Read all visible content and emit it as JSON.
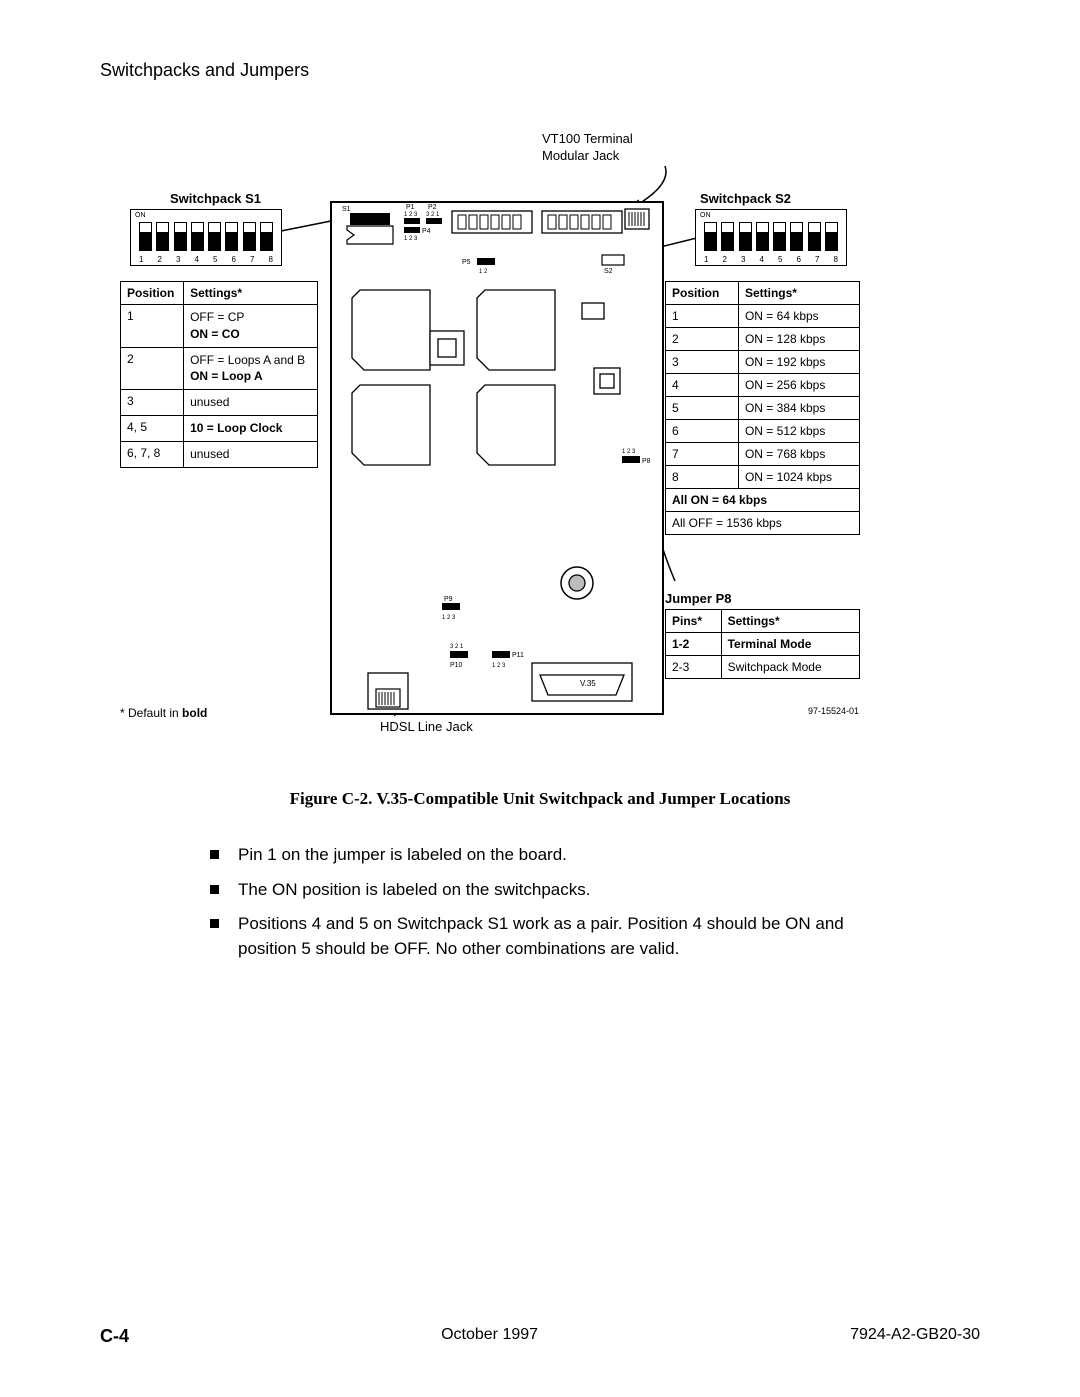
{
  "header": "Switchpacks and Jumpers",
  "labels": {
    "vt100": "VT100 Terminal\nModular Jack",
    "s1_title": "Switchpack S1",
    "s2_title": "Switchpack S2",
    "p8_title": "Jumper P8",
    "hdsl": "HDSL Line Jack",
    "default_note_prefix": "* Default in ",
    "default_note_bold": "bold",
    "on": "ON",
    "v35": "V.35",
    "P1": "P1",
    "P2": "P2",
    "P4": "P4",
    "P5": "P5",
    "P8": "P8",
    "P9": "P9",
    "P10": "P10",
    "P11": "P11",
    "S1": "S1",
    "S2": "S2",
    "n123a": "1 2 3",
    "n321": "3 2 1",
    "n12": "1 2",
    "dip_numbers": [
      "1",
      "2",
      "3",
      "4",
      "5",
      "6",
      "7",
      "8"
    ]
  },
  "tables": {
    "s1": {
      "headers": [
        "Position",
        "Settings*"
      ],
      "rows": [
        {
          "pos": "1",
          "lines": [
            {
              "t": "OFF = CP",
              "b": false
            },
            {
              "t": "ON = CO",
              "b": true
            }
          ]
        },
        {
          "pos": "2",
          "lines": [
            {
              "t": "OFF = Loops A and B",
              "b": false
            },
            {
              "t": "ON = Loop A",
              "b": true
            }
          ]
        },
        {
          "pos": "3",
          "lines": [
            {
              "t": "unused",
              "b": false
            }
          ]
        },
        {
          "pos": "4, 5",
          "lines": [
            {
              "t": "10 = Loop Clock",
              "b": true
            }
          ]
        },
        {
          "pos": "6, 7, 8",
          "lines": [
            {
              "t": "unused",
              "b": false
            }
          ]
        }
      ]
    },
    "s2": {
      "headers": [
        "Position",
        "Settings*"
      ],
      "rows": [
        {
          "pos": "1",
          "set": "ON = 64 kbps",
          "b": false
        },
        {
          "pos": "2",
          "set": "ON = 128 kbps",
          "b": false
        },
        {
          "pos": "3",
          "set": "ON = 192 kbps",
          "b": false
        },
        {
          "pos": "4",
          "set": "ON = 256 kbps",
          "b": false
        },
        {
          "pos": "5",
          "set": "ON = 384 kbps",
          "b": false
        },
        {
          "pos": "6",
          "set": "ON = 512 kbps",
          "b": false
        },
        {
          "pos": "7",
          "set": "ON = 768 kbps",
          "b": false
        },
        {
          "pos": "8",
          "set": "ON = 1024 kbps",
          "b": false
        },
        {
          "pos": "",
          "set": "All ON = 64 kbps",
          "b": true
        },
        {
          "pos": "",
          "set": "All OFF = 1536 kbps",
          "b": false
        }
      ]
    },
    "p8": {
      "headers": [
        "Pins*",
        "Settings*"
      ],
      "rows": [
        {
          "p": "1-2",
          "s": "Terminal Mode",
          "b": true
        },
        {
          "p": "2-3",
          "s": "Switchpack Mode",
          "b": false
        }
      ]
    }
  },
  "caption": "Figure C-2.    V.35-Compatible Unit Switchpack and Jumper Locations",
  "notes": [
    "Pin 1 on the jumper is labeled on the board.",
    "The ON position is labeled on the switchpacks.",
    "Positions 4 and 5 on Switchpack S1 work as a pair. Position 4 should be ON and position 5 should be OFF. No other combinations are valid."
  ],
  "drawing_id": "97-15524-01",
  "footer": {
    "page": "C-4",
    "date": "October 1997",
    "doc": "7924-A2-GB20-30"
  },
  "colors": {
    "stroke": "#000000",
    "bg": "#ffffff"
  }
}
